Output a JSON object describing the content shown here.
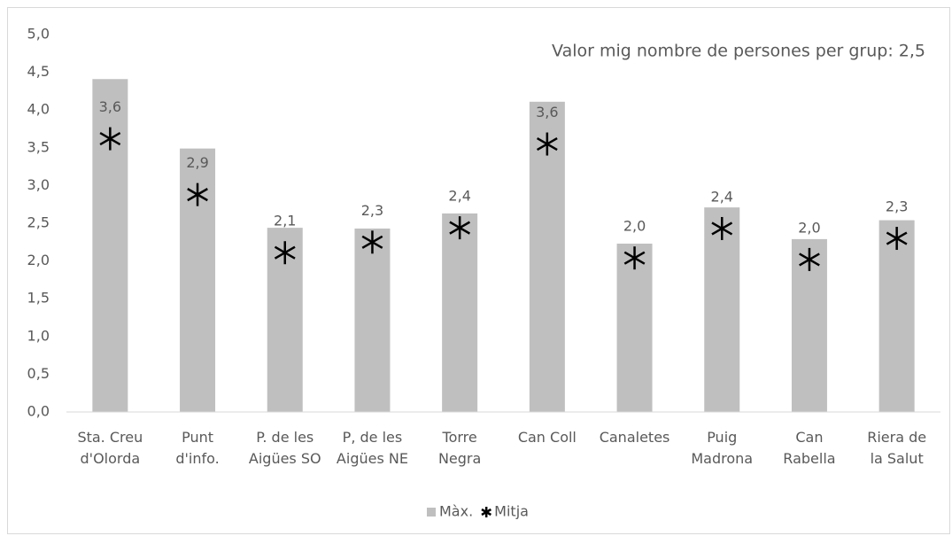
{
  "chart_data": {
    "type": "bar",
    "annotation": "Valor mig nombre de persones per grup: 2,5",
    "categories": [
      "Sta. Creu\nd'Olorda",
      "Punt\nd'info.",
      "P. de les\nAigües SO",
      "P, de les\nAigües NE",
      "Torre\nNegra",
      "Can Coll",
      "Canaletes",
      "Puig\nMadrona",
      "Can\nRabella",
      "Riera de\nla Salut"
    ],
    "series": [
      {
        "name": "Màx.",
        "type": "bar",
        "color": "#bfbfbf",
        "values": [
          4.41,
          3.49,
          2.44,
          2.43,
          2.63,
          4.11,
          2.23,
          2.71,
          2.29,
          2.54
        ]
      },
      {
        "name": "Mitja",
        "type": "scatter",
        "color": "#000000",
        "values": [
          3.62,
          2.88,
          2.11,
          2.25,
          2.44,
          3.55,
          2.04,
          2.43,
          2.02,
          2.3
        ],
        "value_labels": [
          "3,6",
          "2,9",
          "2,1",
          "2,3",
          "2,4",
          "3,6",
          "2,0",
          "2,4",
          "2,0",
          "2,3"
        ]
      }
    ],
    "ylim": [
      0,
      5
    ],
    "yticks": [
      {
        "value": 0,
        "label": "0,0"
      },
      {
        "value": 0.5,
        "label": "0,5"
      },
      {
        "value": 1,
        "label": "1,0"
      },
      {
        "value": 1.5,
        "label": "1,5"
      },
      {
        "value": 2,
        "label": "2,0"
      },
      {
        "value": 2.5,
        "label": "2,5"
      },
      {
        "value": 3,
        "label": "3,0"
      },
      {
        "value": 3.5,
        "label": "3,5"
      },
      {
        "value": 4,
        "label": "4,0"
      },
      {
        "value": 4.5,
        "label": "4,5"
      },
      {
        "value": 5,
        "label": "5,0"
      }
    ],
    "grid": false,
    "legend": "bottom"
  }
}
